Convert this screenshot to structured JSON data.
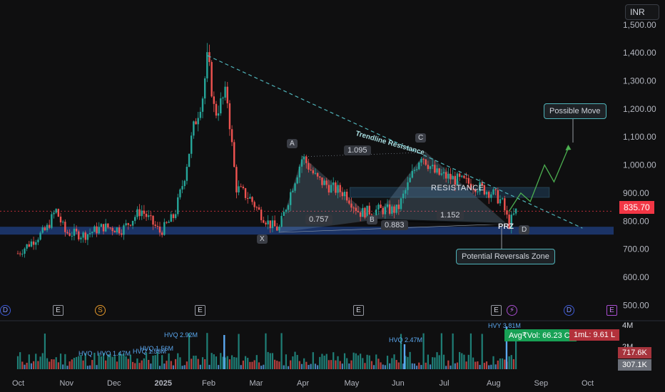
{
  "currency": "INR",
  "last_price_label": "835.70",
  "chart_data": {
    "type": "candlestick",
    "price_axis": {
      "min": 450,
      "max": 1560,
      "ticks": [
        "1,500.00",
        "1,400.00",
        "1,300.00",
        "1,200.00",
        "1,100.00",
        "1,000.00",
        "900.00",
        "800.00",
        "700.00",
        "600.00",
        "500.00"
      ],
      "tick_values": [
        1500,
        1400,
        1300,
        1200,
        1100,
        1000,
        900,
        800,
        700,
        600,
        500
      ]
    },
    "time_axis": {
      "labels": [
        "Oct",
        "Nov",
        "Dec",
        "2025",
        "Feb",
        "Mar",
        "Apr",
        "May",
        "Jun",
        "Jul",
        "Aug",
        "Sep",
        "Oct"
      ],
      "bold": [
        "2025"
      ]
    },
    "price_path": [
      {
        "t": 0.0,
        "p": 685
      },
      {
        "t": 0.6,
        "p": 770
      },
      {
        "t": 0.8,
        "p": 840
      },
      {
        "t": 1.0,
        "p": 760
      },
      {
        "t": 1.4,
        "p": 750
      },
      {
        "t": 1.8,
        "p": 780
      },
      {
        "t": 2.2,
        "p": 770
      },
      {
        "t": 2.6,
        "p": 840
      },
      {
        "t": 3.0,
        "p": 760
      },
      {
        "t": 3.3,
        "p": 820
      },
      {
        "t": 3.5,
        "p": 950
      },
      {
        "t": 3.7,
        "p": 1130
      },
      {
        "t": 3.9,
        "p": 1250
      },
      {
        "t": 4.0,
        "p": 1390
      },
      {
        "t": 4.15,
        "p": 1180
      },
      {
        "t": 4.4,
        "p": 1260
      },
      {
        "t": 4.6,
        "p": 920
      },
      {
        "t": 4.9,
        "p": 880
      },
      {
        "t": 5.1,
        "p": 830
      },
      {
        "t": 5.3,
        "p": 790
      },
      {
        "t": 5.5,
        "p": 770
      },
      {
        "t": 5.8,
        "p": 930
      },
      {
        "t": 6.0,
        "p": 1030
      },
      {
        "t": 6.3,
        "p": 950
      },
      {
        "t": 6.6,
        "p": 920
      },
      {
        "t": 6.9,
        "p": 900
      },
      {
        "t": 7.2,
        "p": 830
      },
      {
        "t": 7.6,
        "p": 840
      },
      {
        "t": 8.0,
        "p": 840
      },
      {
        "t": 8.3,
        "p": 960
      },
      {
        "t": 8.5,
        "p": 1040
      },
      {
        "t": 8.8,
        "p": 970
      },
      {
        "t": 9.2,
        "p": 950
      },
      {
        "t": 9.6,
        "p": 930
      },
      {
        "t": 10.0,
        "p": 900
      },
      {
        "t": 10.2,
        "p": 870
      },
      {
        "t": 10.35,
        "p": 790
      },
      {
        "t": 10.5,
        "p": 835
      }
    ],
    "trendline": {
      "label": "Trendline Resistance",
      "from": {
        "t": 4.0,
        "p": 1390
      },
      "to": {
        "t": 11.9,
        "p": 775
      }
    },
    "resistance": {
      "label": "RESISTANCE",
      "top": 920,
      "bottom": 885,
      "from_t": 7.0,
      "to_t": 11.2
    },
    "support_zone": {
      "top": 780,
      "bottom": 752
    },
    "harmonic": {
      "points": [
        {
          "name": "X",
          "t": 5.5,
          "p": 760
        },
        {
          "name": "A",
          "t": 6.0,
          "p": 1030
        },
        {
          "name": "B",
          "t": 7.5,
          "p": 805
        },
        {
          "name": "C",
          "t": 8.6,
          "p": 1045
        },
        {
          "name": "D",
          "t": 10.3,
          "p": 790
        }
      ],
      "ratios": [
        {
          "label": "1.095",
          "t": 7.25,
          "p": 1040
        },
        {
          "label": "0.757",
          "t": 6.25,
          "p": 808
        },
        {
          "label": "0.883",
          "t": 7.8,
          "p": 790
        },
        {
          "label": "1.152",
          "t": 8.75,
          "p": 818
        }
      ]
    },
    "prz_label": "PRZ",
    "projection": [
      {
        "t": 10.35,
        "p": 835
      },
      {
        "t": 10.6,
        "p": 900
      },
      {
        "t": 10.8,
        "p": 870
      },
      {
        "t": 11.1,
        "p": 1000
      },
      {
        "t": 11.3,
        "p": 940
      },
      {
        "t": 11.6,
        "p": 1060
      }
    ],
    "annotations": {
      "possible_move": "Possible Move",
      "potential_reversal": "Potential Reversals Zone"
    },
    "volume": {
      "labels": [
        "4M",
        "2M"
      ],
      "last_labels": [
        "717.6K",
        "307.1K"
      ],
      "hvq": [
        "HVQ 2.92M",
        "HVQ 1.56M",
        "HVQ 1.47M",
        "HVQ 2.47M",
        "HVY 3.81M",
        "HVQ 1.47M",
        "HVQ",
        "HVQ 1.56M"
      ],
      "avg_vol": "Avg₹Vol: 66.23 Cr",
      "ml": "1mL: 9.61 L"
    },
    "events": [
      "D",
      "E",
      "S",
      "E",
      "E",
      "E",
      "D",
      "E"
    ]
  }
}
